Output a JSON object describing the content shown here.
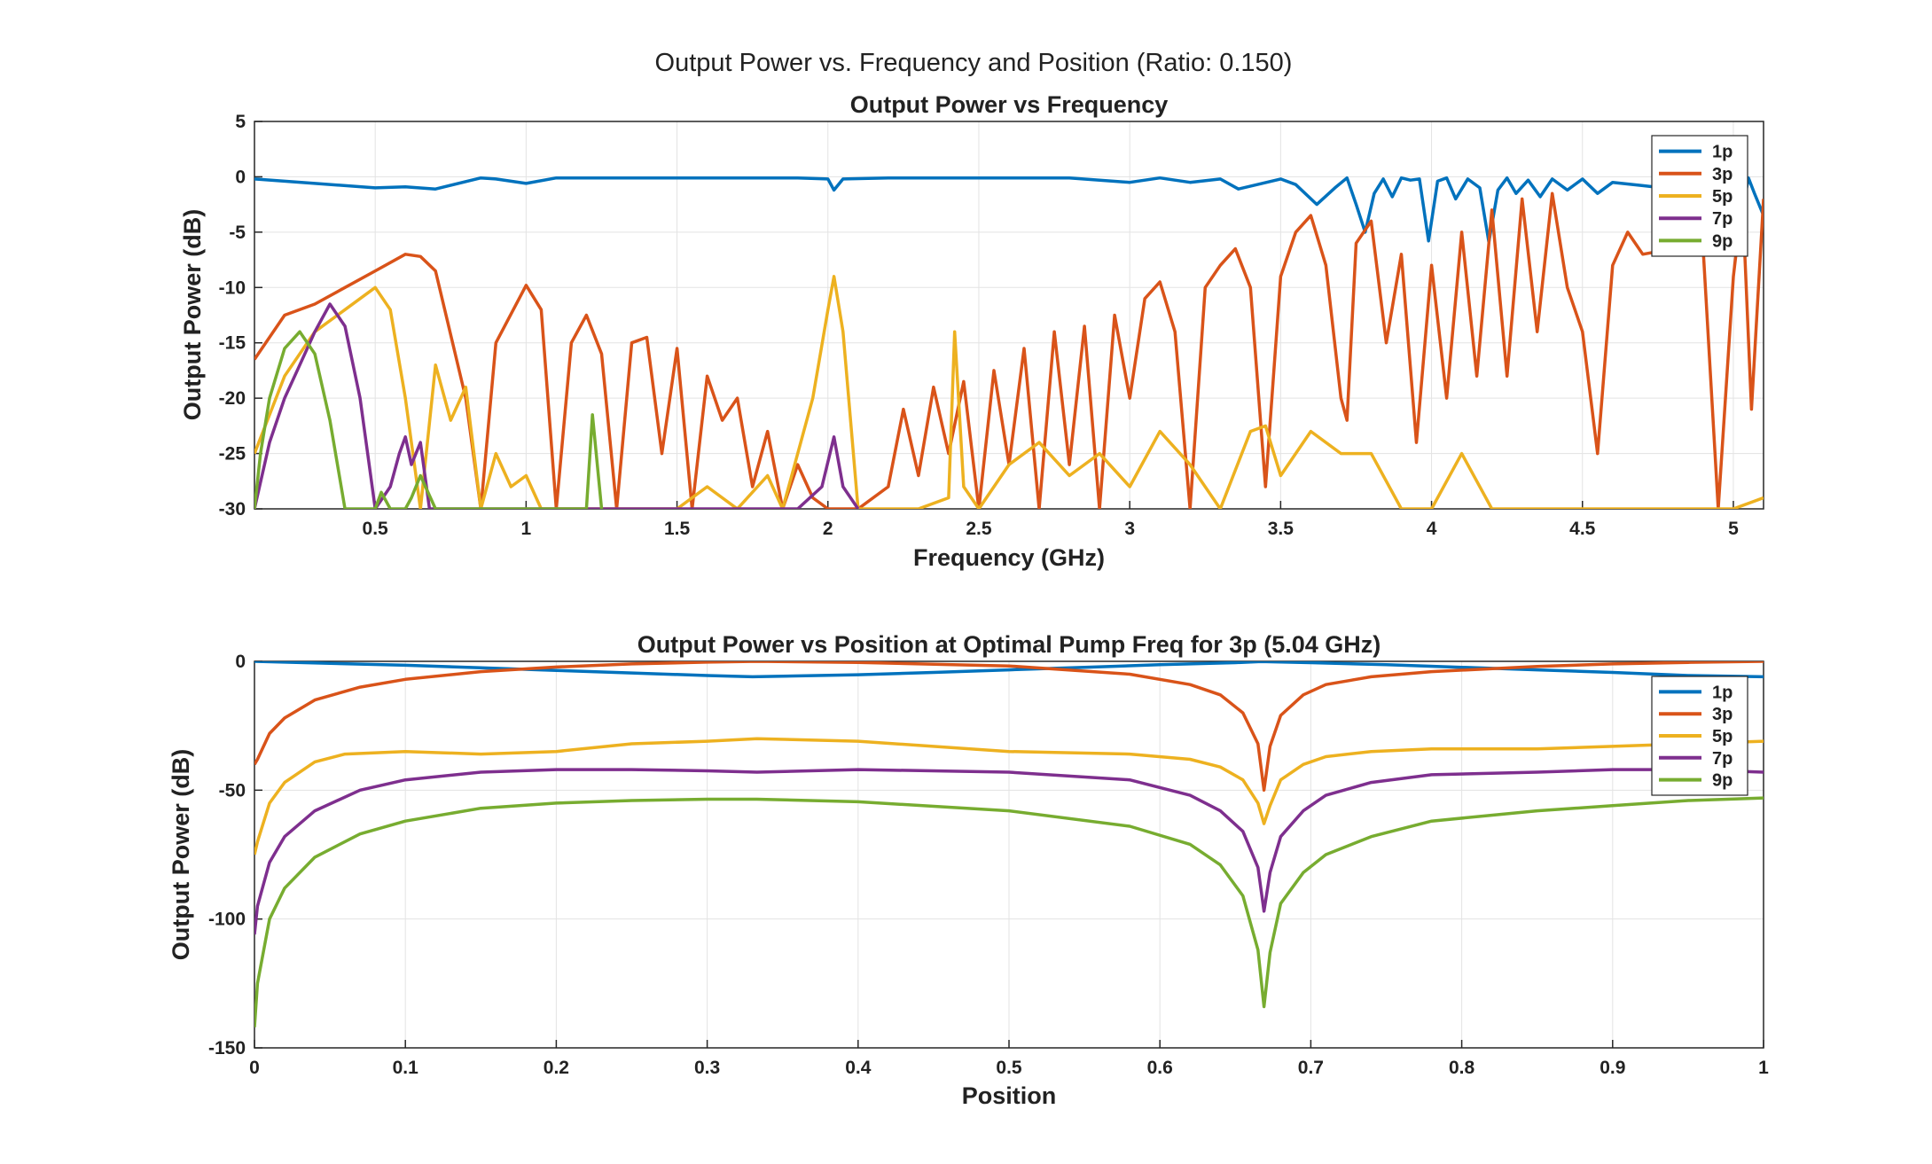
{
  "figure": {
    "suptitle": "Output Power vs. Frequency and Position (Ratio: 0.150)"
  },
  "chart_data": [
    {
      "type": "line",
      "title": "Output Power vs Frequency",
      "xlabel": "Frequency (GHz)",
      "ylabel": "Output Power (dB)",
      "xlim": [
        0.1,
        5.1
      ],
      "ylim": [
        -30,
        5
      ],
      "xticks": [
        0.5,
        1,
        1.5,
        2,
        2.5,
        3,
        3.5,
        4,
        4.5,
        5
      ],
      "xtick_labels": [
        "0.5",
        "1",
        "1.5",
        "2",
        "2.5",
        "3",
        "3.5",
        "4",
        "4.5",
        "5"
      ],
      "yticks": [
        5,
        0,
        -5,
        -10,
        -15,
        -20,
        -25,
        -30
      ],
      "ytick_labels": [
        "5",
        "0",
        "-5",
        "-10",
        "-15",
        "-20",
        "-25",
        "-30"
      ],
      "grid": true,
      "legend_position": "top-right",
      "series": [
        {
          "name": "1p",
          "color": "#0072BD",
          "x": [
            0.1,
            0.3,
            0.5,
            0.6,
            0.7,
            0.85,
            0.9,
            1.0,
            1.1,
            1.3,
            1.5,
            1.7,
            1.9,
            2.0,
            2.02,
            2.05,
            2.2,
            2.4,
            2.6,
            2.8,
            3.0,
            3.1,
            3.2,
            3.3,
            3.36,
            3.5,
            3.55,
            3.62,
            3.68,
            3.72,
            3.75,
            3.78,
            3.81,
            3.84,
            3.87,
            3.9,
            3.93,
            3.96,
            3.99,
            4.02,
            4.05,
            4.08,
            4.12,
            4.16,
            4.19,
            4.22,
            4.25,
            4.28,
            4.32,
            4.36,
            4.4,
            4.45,
            4.5,
            4.55,
            4.6,
            4.7,
            4.8,
            4.9,
            5.0,
            5.03,
            5.05,
            5.07,
            5.1
          ],
          "y": [
            -0.2,
            -0.6,
            -1.0,
            -0.9,
            -1.1,
            -0.1,
            -0.2,
            -0.6,
            -0.1,
            -0.1,
            -0.1,
            -0.1,
            -0.1,
            -0.2,
            -1.2,
            -0.2,
            -0.1,
            -0.1,
            -0.1,
            -0.1,
            -0.5,
            -0.1,
            -0.5,
            -0.2,
            -1.1,
            -0.2,
            -0.7,
            -2.5,
            -1.0,
            -0.1,
            -2.5,
            -5.0,
            -1.5,
            -0.2,
            -1.8,
            -0.1,
            -0.3,
            -0.2,
            -5.8,
            -0.4,
            -0.1,
            -2.0,
            -0.2,
            -1.0,
            -5.9,
            -1.2,
            -0.1,
            -1.5,
            -0.3,
            -1.8,
            -0.2,
            -1.2,
            -0.2,
            -1.5,
            -0.5,
            -0.8,
            -1.1,
            -1.2,
            -1.3,
            -3.0,
            -0.1,
            -1.5,
            -3.5
          ]
        },
        {
          "name": "3p",
          "color": "#D95319",
          "x": [
            0.1,
            0.2,
            0.3,
            0.4,
            0.5,
            0.6,
            0.65,
            0.7,
            0.8,
            0.85,
            0.9,
            1.0,
            1.05,
            1.1,
            1.15,
            1.2,
            1.25,
            1.3,
            1.35,
            1.4,
            1.45,
            1.5,
            1.55,
            1.6,
            1.65,
            1.7,
            1.75,
            1.8,
            1.85,
            1.9,
            1.95,
            2.0,
            2.1,
            2.2,
            2.25,
            2.3,
            2.35,
            2.4,
            2.45,
            2.5,
            2.55,
            2.6,
            2.65,
            2.7,
            2.75,
            2.8,
            2.85,
            2.9,
            2.95,
            3.0,
            3.05,
            3.1,
            3.15,
            3.2,
            3.25,
            3.3,
            3.35,
            3.4,
            3.45,
            3.5,
            3.55,
            3.6,
            3.65,
            3.7,
            3.72,
            3.75,
            3.8,
            3.85,
            3.9,
            3.95,
            4.0,
            4.05,
            4.1,
            4.15,
            4.2,
            4.25,
            4.3,
            4.35,
            4.4,
            4.45,
            4.5,
            4.55,
            4.6,
            4.65,
            4.7,
            4.8,
            4.9,
            4.95,
            5.0,
            5.03,
            5.06,
            5.1
          ],
          "y": [
            -16.5,
            -12.5,
            -11.5,
            -10.0,
            -8.5,
            -7.0,
            -7.2,
            -8.5,
            -20.0,
            -30.0,
            -15.0,
            -9.8,
            -12.0,
            -30.0,
            -15.0,
            -12.5,
            -16.0,
            -30.0,
            -15.0,
            -14.5,
            -25.0,
            -15.5,
            -30.0,
            -18.0,
            -22.0,
            -20.0,
            -28.0,
            -23.0,
            -30.0,
            -26.0,
            -29.0,
            -30.0,
            -30.0,
            -28.0,
            -21.0,
            -27.0,
            -19.0,
            -25.0,
            -18.5,
            -30.0,
            -17.5,
            -26.0,
            -15.5,
            -30.0,
            -14.0,
            -26.0,
            -13.5,
            -30.0,
            -12.5,
            -20.0,
            -11.0,
            -9.5,
            -14.0,
            -30.0,
            -10.0,
            -8.0,
            -6.5,
            -10.0,
            -28.0,
            -9.0,
            -5.0,
            -3.5,
            -8.0,
            -20.0,
            -22.0,
            -6.0,
            -4.0,
            -15.0,
            -7.0,
            -24.0,
            -8.0,
            -20.0,
            -5.0,
            -18.0,
            -3.0,
            -18.0,
            -2.0,
            -14.0,
            -1.5,
            -10.0,
            -14.0,
            -25.0,
            -8.0,
            -5.0,
            -7.0,
            -6.5,
            -6.5,
            -30.0,
            -9.0,
            -2.0,
            -21.0,
            -2.0
          ]
        },
        {
          "name": "5p",
          "color": "#EDB120",
          "x": [
            0.1,
            0.2,
            0.3,
            0.4,
            0.5,
            0.55,
            0.6,
            0.65,
            0.7,
            0.75,
            0.8,
            0.85,
            0.9,
            0.95,
            1.0,
            1.05,
            1.1,
            1.5,
            1.6,
            1.7,
            1.8,
            1.85,
            1.9,
            1.95,
            2.0,
            2.02,
            2.05,
            2.1,
            2.2,
            2.3,
            2.4,
            2.42,
            2.45,
            2.5,
            2.6,
            2.7,
            2.8,
            2.9,
            3.0,
            3.1,
            3.2,
            3.3,
            3.4,
            3.45,
            3.5,
            3.6,
            3.7,
            3.8,
            3.9,
            4.0,
            4.1,
            4.2,
            4.3,
            5.0,
            5.1
          ],
          "y": [
            -25.0,
            -18.0,
            -14.0,
            -12.0,
            -10.0,
            -12.0,
            -20.0,
            -30.0,
            -17.0,
            -22.0,
            -19.0,
            -30.0,
            -25.0,
            -28.0,
            -27.0,
            -30.0,
            -30.0,
            -30.0,
            -28.0,
            -30.0,
            -27.0,
            -30.0,
            -25.0,
            -20.0,
            -12.0,
            -9.0,
            -14.0,
            -30.0,
            -30.0,
            -30.0,
            -29.0,
            -14.0,
            -28.0,
            -30.0,
            -26.0,
            -24.0,
            -27.0,
            -25.0,
            -28.0,
            -23.0,
            -26.0,
            -30.0,
            -23.0,
            -22.5,
            -27.0,
            -23.0,
            -25.0,
            -25.0,
            -30.0,
            -30.0,
            -25.0,
            -30.0,
            -30.0,
            -30.0,
            -29.0
          ]
        },
        {
          "name": "7p",
          "color": "#7E2F8E",
          "x": [
            0.1,
            0.15,
            0.2,
            0.25,
            0.3,
            0.35,
            0.4,
            0.45,
            0.5,
            0.55,
            0.58,
            0.6,
            0.62,
            0.65,
            0.68,
            0.7,
            1.2,
            1.75,
            1.9,
            1.98,
            2.02,
            2.05,
            2.1
          ],
          "y": [
            -30.0,
            -24.0,
            -20.0,
            -17.0,
            -14.0,
            -11.5,
            -13.5,
            -20.0,
            -30.0,
            -28.0,
            -25.0,
            -23.5,
            -26.0,
            -24.0,
            -30.0,
            -30.0,
            -30.0,
            -30.0,
            -30.0,
            -28.0,
            -23.5,
            -28.0,
            -30.0
          ]
        },
        {
          "name": "9p",
          "color": "#77AC30",
          "x": [
            0.1,
            0.12,
            0.15,
            0.2,
            0.25,
            0.3,
            0.35,
            0.4,
            0.45,
            0.5,
            0.52,
            0.55,
            0.6,
            0.62,
            0.65,
            0.7,
            1.2,
            1.22,
            1.25
          ],
          "y": [
            -30.0,
            -25.0,
            -20.0,
            -15.5,
            -14.0,
            -16.0,
            -22.0,
            -30.0,
            -30.0,
            -30.0,
            -28.5,
            -30.0,
            -30.0,
            -29.0,
            -27.0,
            -30.0,
            -30.0,
            -21.5,
            -30.0
          ]
        }
      ]
    },
    {
      "type": "line",
      "title": "Output Power vs Position at Optimal Pump Freq for 3p (5.04 GHz)",
      "xlabel": "Position",
      "ylabel": "Output Power (dB)",
      "xlim": [
        0,
        1
      ],
      "ylim": [
        -150,
        0
      ],
      "xticks": [
        0,
        0.1,
        0.2,
        0.3,
        0.4,
        0.5,
        0.6,
        0.7,
        0.8,
        0.9,
        1
      ],
      "xtick_labels": [
        "0",
        "0.1",
        "0.2",
        "0.3",
        "0.4",
        "0.5",
        "0.6",
        "0.7",
        "0.8",
        "0.9",
        "1"
      ],
      "yticks": [
        0,
        -50,
        -100,
        -150
      ],
      "ytick_labels": [
        "0",
        "-50",
        "-100",
        "-150"
      ],
      "grid": true,
      "legend_position": "top-right",
      "series": [
        {
          "name": "1p",
          "color": "#0072BD",
          "x": [
            0,
            0.05,
            0.1,
            0.15,
            0.2,
            0.25,
            0.3,
            0.33,
            0.4,
            0.45,
            0.5,
            0.55,
            0.6,
            0.65,
            0.667,
            0.7,
            0.75,
            0.8,
            0.85,
            0.9,
            0.95,
            1.0
          ],
          "y": [
            0,
            -0.8,
            -1.5,
            -2.5,
            -3.5,
            -4.5,
            -5.5,
            -6.0,
            -5.2,
            -4.3,
            -3.3,
            -2.3,
            -1.3,
            -0.5,
            -0.1,
            -0.5,
            -1.3,
            -2.3,
            -3.3,
            -4.3,
            -5.5,
            -6.0
          ]
        },
        {
          "name": "3p",
          "color": "#D95319",
          "x": [
            0,
            0.002,
            0.01,
            0.02,
            0.04,
            0.07,
            0.1,
            0.15,
            0.2,
            0.25,
            0.3,
            0.333,
            0.4,
            0.5,
            0.58,
            0.62,
            0.64,
            0.655,
            0.665,
            0.669,
            0.673,
            0.68,
            0.695,
            0.71,
            0.74,
            0.78,
            0.85,
            0.9,
            0.95,
            1.0
          ],
          "y": [
            -40,
            -38,
            -28,
            -22,
            -15,
            -10,
            -7,
            -4,
            -2.2,
            -1,
            -0.3,
            0,
            -0.4,
            -1.8,
            -5,
            -9,
            -13,
            -20,
            -32,
            -50,
            -33,
            -21,
            -13,
            -9,
            -6,
            -4,
            -2,
            -1,
            -0.4,
            0
          ]
        },
        {
          "name": "5p",
          "color": "#EDB120",
          "x": [
            0,
            0.002,
            0.01,
            0.02,
            0.04,
            0.06,
            0.1,
            0.15,
            0.2,
            0.25,
            0.3,
            0.333,
            0.4,
            0.5,
            0.58,
            0.62,
            0.64,
            0.655,
            0.665,
            0.669,
            0.673,
            0.68,
            0.695,
            0.71,
            0.74,
            0.78,
            0.85,
            0.9,
            0.95,
            1.0
          ],
          "y": [
            -75,
            -70,
            -55,
            -47,
            -39,
            -36,
            -35,
            -36,
            -35,
            -32,
            -31,
            -30,
            -31,
            -35,
            -36,
            -38,
            -41,
            -46,
            -55,
            -63,
            -56,
            -46,
            -40,
            -37,
            -35,
            -34,
            -34,
            -33,
            -32,
            -31
          ]
        },
        {
          "name": "7p",
          "color": "#7E2F8E",
          "x": [
            0,
            0.002,
            0.01,
            0.02,
            0.04,
            0.07,
            0.1,
            0.15,
            0.2,
            0.25,
            0.3,
            0.333,
            0.4,
            0.5,
            0.58,
            0.62,
            0.64,
            0.655,
            0.665,
            0.669,
            0.673,
            0.68,
            0.695,
            0.71,
            0.74,
            0.78,
            0.85,
            0.9,
            0.95,
            1.0
          ],
          "y": [
            -106,
            -95,
            -78,
            -68,
            -58,
            -50,
            -46,
            -43,
            -42,
            -42,
            -42.5,
            -43,
            -42,
            -43,
            -46,
            -52,
            -58,
            -66,
            -80,
            -97,
            -82,
            -68,
            -58,
            -52,
            -47,
            -44,
            -43,
            -42,
            -42,
            -43
          ]
        },
        {
          "name": "9p",
          "color": "#77AC30",
          "x": [
            0,
            0.002,
            0.01,
            0.02,
            0.04,
            0.07,
            0.1,
            0.15,
            0.2,
            0.25,
            0.3,
            0.333,
            0.4,
            0.5,
            0.58,
            0.62,
            0.64,
            0.655,
            0.665,
            0.669,
            0.673,
            0.68,
            0.695,
            0.71,
            0.74,
            0.78,
            0.85,
            0.9,
            0.95,
            1.0
          ],
          "y": [
            -142,
            -125,
            -100,
            -88,
            -76,
            -67,
            -62,
            -57,
            -55,
            -54,
            -53.5,
            -53.5,
            -54.5,
            -58,
            -64,
            -71,
            -79,
            -91,
            -112,
            -134,
            -113,
            -94,
            -82,
            -75,
            -68,
            -62,
            -58,
            -56,
            -54,
            -53
          ]
        }
      ]
    }
  ]
}
